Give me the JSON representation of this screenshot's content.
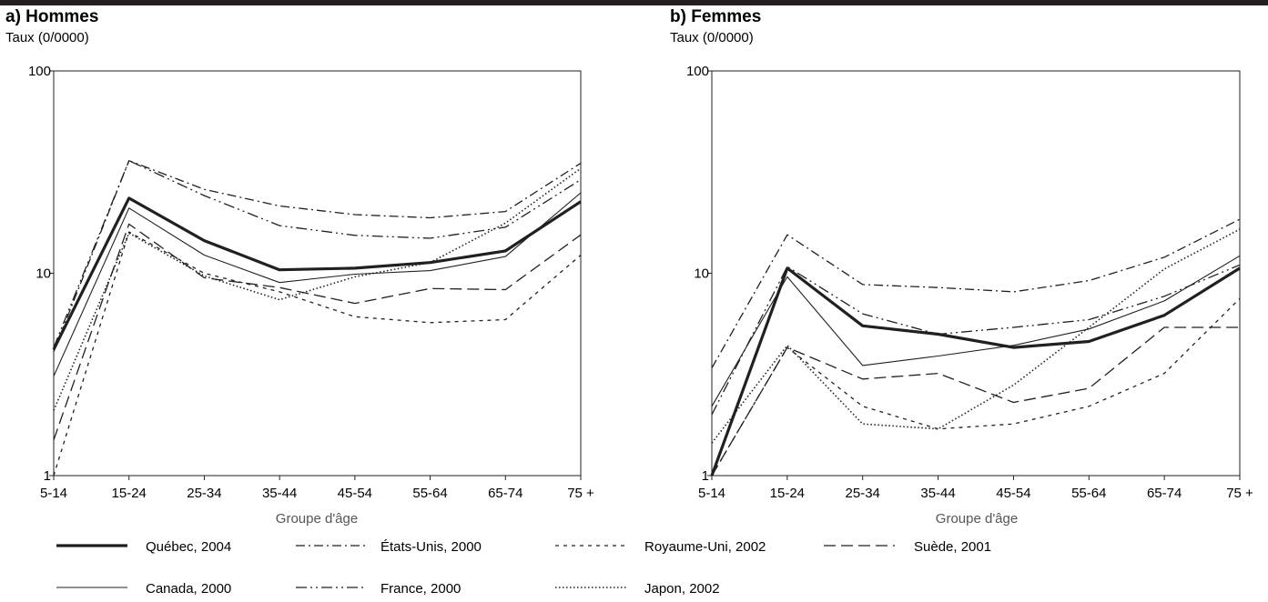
{
  "chart_data": [
    {
      "type": "line",
      "title": "a) Hommes",
      "ylabel": "Taux (0/0000)",
      "xlabel": "Groupe d'âge",
      "yscale": "log",
      "ylim": [
        1,
        100
      ],
      "yticks": [
        "1",
        "10",
        "100"
      ],
      "categories": [
        "5-14",
        "15-24",
        "25-34",
        "35-44",
        "45-54",
        "55-64",
        "65-74",
        "75 +"
      ],
      "grid": false,
      "series": [
        {
          "name": "Québec, 2004",
          "values": [
            4.2,
            23.5,
            14.5,
            10.4,
            10.6,
            11.3,
            12.9,
            22.6
          ]
        },
        {
          "name": "Canada, 2000",
          "values": [
            3.1,
            21.0,
            12.3,
            9.0,
            9.9,
            10.3,
            12.1,
            25.0
          ]
        },
        {
          "name": "États-Unis, 2000",
          "values": [
            4.1,
            36.0,
            26.0,
            21.5,
            19.5,
            18.8,
            20.2,
            35.0
          ]
        },
        {
          "name": "France, 2000",
          "values": [
            4.3,
            36.0,
            24.2,
            17.2,
            15.4,
            14.9,
            16.9,
            29.0
          ]
        },
        {
          "name": "Royaume-Uni, 2002",
          "values": [
            1.0,
            16.0,
            10.0,
            8.1,
            6.1,
            5.7,
            5.9,
            12.3
          ]
        },
        {
          "name": "Japon, 2002",
          "values": [
            2.1,
            15.8,
            9.7,
            7.4,
            9.6,
            11.3,
            17.7,
            33.0
          ]
        },
        {
          "name": "Suède, 2001",
          "values": [
            1.5,
            17.5,
            9.5,
            8.5,
            7.1,
            8.4,
            8.3,
            15.5
          ]
        }
      ]
    },
    {
      "type": "line",
      "title": "b) Femmes",
      "ylabel": "Taux (0/0000)",
      "xlabel": "Groupe d'âge",
      "yscale": "log",
      "ylim": [
        1,
        100
      ],
      "yticks": [
        "1",
        "10",
        "100"
      ],
      "categories": [
        "5-14",
        "15-24",
        "25-34",
        "35-44",
        "45-54",
        "55-64",
        "65-74",
        "75 +"
      ],
      "grid": false,
      "series": [
        {
          "name": "Québec, 2004",
          "values": [
            1.0,
            10.6,
            5.5,
            5.0,
            4.3,
            4.6,
            6.2,
            10.6
          ]
        },
        {
          "name": "Canada, 2000",
          "values": [
            2.2,
            9.6,
            3.5,
            3.9,
            4.4,
            5.3,
            7.3,
            12.2
          ]
        },
        {
          "name": "États-Unis, 2000",
          "values": [
            3.4,
            15.5,
            8.8,
            8.5,
            8.1,
            9.2,
            12.0,
            18.5
          ]
        },
        {
          "name": "France, 2000",
          "values": [
            2.0,
            10.8,
            6.3,
            5.0,
            5.4,
            5.9,
            7.7,
            11.0
          ]
        },
        {
          "name": "Royaume-Uni, 2002",
          "values": [
            1.0,
            4.3,
            2.2,
            1.7,
            1.8,
            2.2,
            3.2,
            7.5
          ]
        },
        {
          "name": "Japon, 2002",
          "values": [
            1.45,
            4.4,
            1.8,
            1.7,
            2.8,
            5.4,
            10.5,
            16.5
          ]
        },
        {
          "name": "Suède, 2001",
          "values": [
            1.0,
            4.3,
            3.0,
            3.2,
            2.3,
            2.7,
            5.4,
            5.4
          ]
        }
      ]
    }
  ],
  "legend": {
    "placement": "bottom",
    "items": [
      {
        "label": "Québec, 2004",
        "style": "thick-solid"
      },
      {
        "label": "États-Unis, 2000",
        "style": "dash-dot"
      },
      {
        "label": "Royaume-Uni, 2002",
        "style": "short-dash"
      },
      {
        "label": "Suède, 2001",
        "style": "long-dash"
      },
      {
        "label": "Canada, 2000",
        "style": "thin-solid"
      },
      {
        "label": "France, 2000",
        "style": "dash-dot-dot"
      },
      {
        "label": "Japon, 2002",
        "style": "dotted"
      }
    ]
  },
  "colors": {
    "lines": "#231f20",
    "axis": "#231f20",
    "top_bar": "#231f20"
  }
}
